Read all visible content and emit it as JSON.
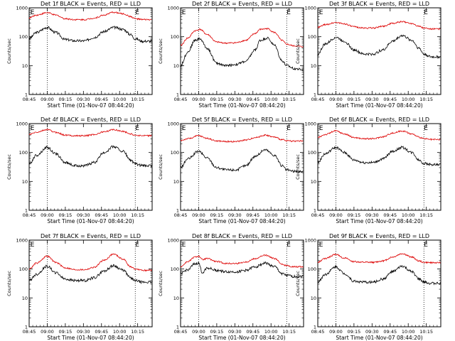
{
  "figure": {
    "background": "#ffffff",
    "events_color": "#000000",
    "lld_color": "#dd0000"
  },
  "chart_data": [
    {
      "type": "line",
      "title": "Det 1f BLACK = Events, RED = LLD",
      "xlabel": "Start Time (01-Nov-07 08:44:20)",
      "ylabel": "Counts/sec",
      "xticks": [
        "08:45",
        "09:00",
        "09:15",
        "09:30",
        "09:45",
        "10:00",
        "10:15"
      ],
      "yticks": [
        "1",
        "10",
        "100",
        "1000"
      ],
      "yscale": "log",
      "ylim": [
        1,
        1000
      ],
      "xlim_minutes": [
        0,
        102
      ],
      "markers": {
        "label": "E",
        "x": [
          1,
          88
        ]
      },
      "dotted_x": [
        15,
        88
      ],
      "x": [
        0,
        6,
        15,
        22,
        30,
        38,
        46,
        54,
        62,
        70,
        78,
        84,
        88,
        94,
        102
      ],
      "series": [
        {
          "name": "Events",
          "values": [
            85,
            140,
            210,
            140,
            80,
            72,
            72,
            95,
            150,
            210,
            180,
            120,
            85,
            70,
            70
          ]
        },
        {
          "name": "LLD",
          "values": [
            450,
            560,
            680,
            560,
            420,
            390,
            390,
            440,
            560,
            700,
            620,
            500,
            420,
            390,
            390
          ]
        }
      ]
    },
    {
      "type": "line",
      "title": "Det 2f BLACK = Events, RED = LLD",
      "xlabel": "Start Time (01-Nov-07 08:44:20)",
      "ylabel": "Counts/sec",
      "xticks": [
        "08:45",
        "09:00",
        "09:15",
        "09:30",
        "09:45",
        "10:00",
        "10:15"
      ],
      "yticks": [
        "1",
        "10",
        "100",
        "1000"
      ],
      "yscale": "log",
      "ylim": [
        1,
        1000
      ],
      "xlim_minutes": [
        0,
        102
      ],
      "markers": {
        "label": "E",
        "x": [
          1,
          88
        ]
      },
      "dotted_x": [
        15,
        88
      ],
      "x": [
        0,
        6,
        12,
        16,
        22,
        30,
        38,
        46,
        54,
        62,
        66,
        72,
        78,
        84,
        88,
        94,
        102
      ],
      "series": [
        {
          "name": "Events",
          "values": [
            10,
            30,
            75,
            85,
            40,
            12,
            10,
            11,
            14,
            35,
            75,
            90,
            50,
            15,
            10,
            8,
            7
          ]
        },
        {
          "name": "LLD",
          "values": [
            50,
            90,
            160,
            180,
            120,
            65,
            60,
            62,
            75,
            130,
            180,
            190,
            140,
            75,
            55,
            48,
            45
          ]
        }
      ]
    },
    {
      "type": "line",
      "title": "Det 3f BLACK = Events, RED = LLD",
      "xlabel": "Start Time (01-Nov-07 08:44:20)",
      "ylabel": "Counts/sec",
      "xticks": [
        "08:45",
        "09:00",
        "09:15",
        "09:30",
        "09:45",
        "10:00",
        "10:15"
      ],
      "yticks": [
        "1",
        "10",
        "100",
        "1000"
      ],
      "yscale": "log",
      "ylim": [
        1,
        1000
      ],
      "xlim_minutes": [
        0,
        102
      ],
      "markers": {
        "label": "E",
        "x": [
          1,
          88
        ]
      },
      "dotted_x": [
        15,
        88
      ],
      "x": [
        0,
        6,
        15,
        22,
        30,
        38,
        46,
        54,
        62,
        70,
        78,
        84,
        88,
        94,
        102
      ],
      "series": [
        {
          "name": "Events",
          "values": [
            25,
            55,
            95,
            70,
            35,
            25,
            25,
            35,
            70,
            110,
            75,
            40,
            25,
            20,
            20
          ]
        },
        {
          "name": "LLD",
          "values": [
            210,
            260,
            310,
            280,
            220,
            200,
            200,
            230,
            290,
            330,
            290,
            230,
            200,
            185,
            185
          ]
        }
      ]
    },
    {
      "type": "line",
      "title": "Det 4f BLACK = Events, RED = LLD",
      "xlabel": "Start Time (01-Nov-07 08:44:20)",
      "ylabel": "Counts/sec",
      "xticks": [
        "08:45",
        "09:00",
        "09:15",
        "09:30",
        "09:45",
        "10:00",
        "10:15"
      ],
      "yticks": [
        "1",
        "10",
        "100",
        "1000"
      ],
      "yscale": "log",
      "ylim": [
        1,
        1000
      ],
      "xlim_minutes": [
        0,
        102
      ],
      "markers": {
        "label": "E",
        "x": [
          1,
          88
        ]
      },
      "dotted_x": [
        15,
        88
      ],
      "x": [
        0,
        6,
        15,
        22,
        30,
        38,
        46,
        54,
        62,
        70,
        78,
        84,
        88,
        94,
        102
      ],
      "series": [
        {
          "name": "Events",
          "values": [
            40,
            80,
            150,
            90,
            45,
            35,
            35,
            45,
            100,
            160,
            110,
            55,
            40,
            35,
            35
          ]
        },
        {
          "name": "LLD",
          "values": [
            420,
            500,
            620,
            500,
            400,
            380,
            380,
            420,
            520,
            620,
            540,
            440,
            400,
            380,
            380
          ]
        }
      ]
    },
    {
      "type": "line",
      "title": "Det 5f BLACK = Events, RED = LLD",
      "xlabel": "Start Time (01-Nov-07 08:44:20)",
      "ylabel": "Counts/sec",
      "xticks": [
        "08:45",
        "09:00",
        "09:15",
        "09:30",
        "09:45",
        "10:00",
        "10:15"
      ],
      "yticks": [
        "1",
        "10",
        "100",
        "1000"
      ],
      "yscale": "log",
      "ylim": [
        1,
        1000
      ],
      "xlim_minutes": [
        0,
        102
      ],
      "markers": {
        "label": "E",
        "x": [
          1,
          88
        ]
      },
      "dotted_x": [
        15,
        88
      ],
      "x": [
        0,
        6,
        15,
        22,
        30,
        38,
        46,
        54,
        62,
        70,
        78,
        84,
        88,
        94,
        102
      ],
      "series": [
        {
          "name": "Events",
          "values": [
            30,
            60,
            110,
            65,
            30,
            25,
            25,
            35,
            75,
            125,
            80,
            35,
            25,
            22,
            22
          ]
        },
        {
          "name": "LLD",
          "values": [
            260,
            300,
            380,
            310,
            250,
            240,
            240,
            270,
            330,
            400,
            340,
            280,
            255,
            250,
            250
          ]
        }
      ]
    },
    {
      "type": "line",
      "title": "Det 6f BLACK = Events, RED = LLD",
      "xlabel": "Start Time (01-Nov-07 08:44:20)",
      "ylabel": "Counts/sec",
      "xticks": [
        "08:45",
        "09:00",
        "09:15",
        "09:30",
        "09:45",
        "10:00",
        "10:15"
      ],
      "yticks": [
        "1",
        "10",
        "100",
        "1000"
      ],
      "yscale": "log",
      "ylim": [
        1,
        1000
      ],
      "xlim_minutes": [
        0,
        102
      ],
      "markers": {
        "label": "E",
        "x": [
          1,
          88
        ]
      },
      "dotted_x": [
        15,
        88
      ],
      "x": [
        0,
        6,
        15,
        22,
        30,
        38,
        46,
        54,
        62,
        70,
        78,
        84,
        88,
        94,
        102
      ],
      "series": [
        {
          "name": "Events",
          "values": [
            45,
            90,
            150,
            100,
            55,
            45,
            45,
            60,
            110,
            150,
            100,
            55,
            42,
            38,
            38
          ]
        },
        {
          "name": "LLD",
          "values": [
            330,
            420,
            560,
            440,
            330,
            300,
            300,
            350,
            470,
            560,
            440,
            340,
            300,
            280,
            280
          ]
        }
      ]
    },
    {
      "type": "line",
      "title": "Det 7f BLACK = Events, RED = LLD",
      "xlabel": "Start Time (01-Nov-07 08:44:20)",
      "ylabel": "Counts/sec",
      "xticks": [
        "08:45",
        "09:00",
        "09:15",
        "09:30",
        "09:45",
        "10:00",
        "10:15"
      ],
      "yticks": [
        "1",
        "10",
        "100",
        "1000"
      ],
      "yscale": "log",
      "ylim": [
        1,
        1000
      ],
      "xlim_minutes": [
        0,
        102
      ],
      "markers": {
        "label": "E",
        "x": [
          1,
          88
        ]
      },
      "dotted_x": [
        15,
        88
      ],
      "x": [
        0,
        6,
        15,
        22,
        30,
        38,
        46,
        54,
        62,
        70,
        78,
        84,
        88,
        94,
        102
      ],
      "series": [
        {
          "name": "Events",
          "values": [
            40,
            65,
            125,
            75,
            45,
            40,
            40,
            50,
            85,
            130,
            90,
            50,
            40,
            35,
            35
          ]
        },
        {
          "name": "LLD",
          "values": [
            100,
            160,
            280,
            170,
            110,
            95,
            95,
            115,
            200,
            330,
            220,
            120,
            100,
            90,
            90
          ]
        }
      ]
    },
    {
      "type": "line",
      "title": "Det 8f BLACK = Events, RED = LLD",
      "xlabel": "Start Time (01-Nov-07 08:44:20)",
      "ylabel": "Counts/sec",
      "xticks": [
        "08:45",
        "09:00",
        "09:15",
        "09:30",
        "09:45",
        "10:00",
        "10:15"
      ],
      "yticks": [
        "1",
        "10",
        "100",
        "1000"
      ],
      "yscale": "log",
      "ylim": [
        1,
        1000
      ],
      "xlim_minutes": [
        0,
        102
      ],
      "markers": {
        "label": "E",
        "x": [
          1,
          88
        ]
      },
      "dotted_x": [
        15,
        88
      ],
      "x": [
        0,
        6,
        12,
        15,
        18,
        22,
        30,
        38,
        46,
        54,
        62,
        70,
        78,
        84,
        88,
        94,
        102
      ],
      "series": [
        {
          "name": "Events",
          "values": [
            70,
            95,
            150,
            160,
            75,
            110,
            90,
            80,
            80,
            90,
            120,
            160,
            120,
            70,
            60,
            55,
            55
          ]
        },
        {
          "name": "LLD",
          "values": [
            120,
            180,
            260,
            280,
            210,
            230,
            180,
            155,
            155,
            175,
            230,
            300,
            230,
            150,
            130,
            120,
            120
          ]
        }
      ]
    },
    {
      "type": "line",
      "title": "Det 9f BLACK = Events, RED = LLD",
      "xlabel": "Start Time (01-Nov-07 08:44:20)",
      "ylabel": "Counts/sec",
      "xticks": [
        "08:45",
        "09:00",
        "09:15",
        "09:30",
        "09:45",
        "10:00",
        "10:15"
      ],
      "yticks": [
        "1",
        "10",
        "100",
        "1000"
      ],
      "yscale": "log",
      "ylim": [
        1,
        1000
      ],
      "xlim_minutes": [
        0,
        102
      ],
      "markers": {
        "label": "E",
        "x": [
          1,
          88
        ]
      },
      "dotted_x": [
        15,
        88
      ],
      "x": [
        0,
        6,
        15,
        22,
        30,
        38,
        46,
        54,
        62,
        70,
        78,
        84,
        88,
        94,
        102
      ],
      "series": [
        {
          "name": "Events",
          "values": [
            35,
            65,
            120,
            70,
            38,
            35,
            35,
            45,
            80,
            125,
            80,
            45,
            35,
            32,
            32
          ]
        },
        {
          "name": "LLD",
          "values": [
            170,
            230,
            320,
            240,
            180,
            170,
            170,
            190,
            260,
            340,
            260,
            190,
            170,
            165,
            165
          ]
        }
      ]
    }
  ]
}
